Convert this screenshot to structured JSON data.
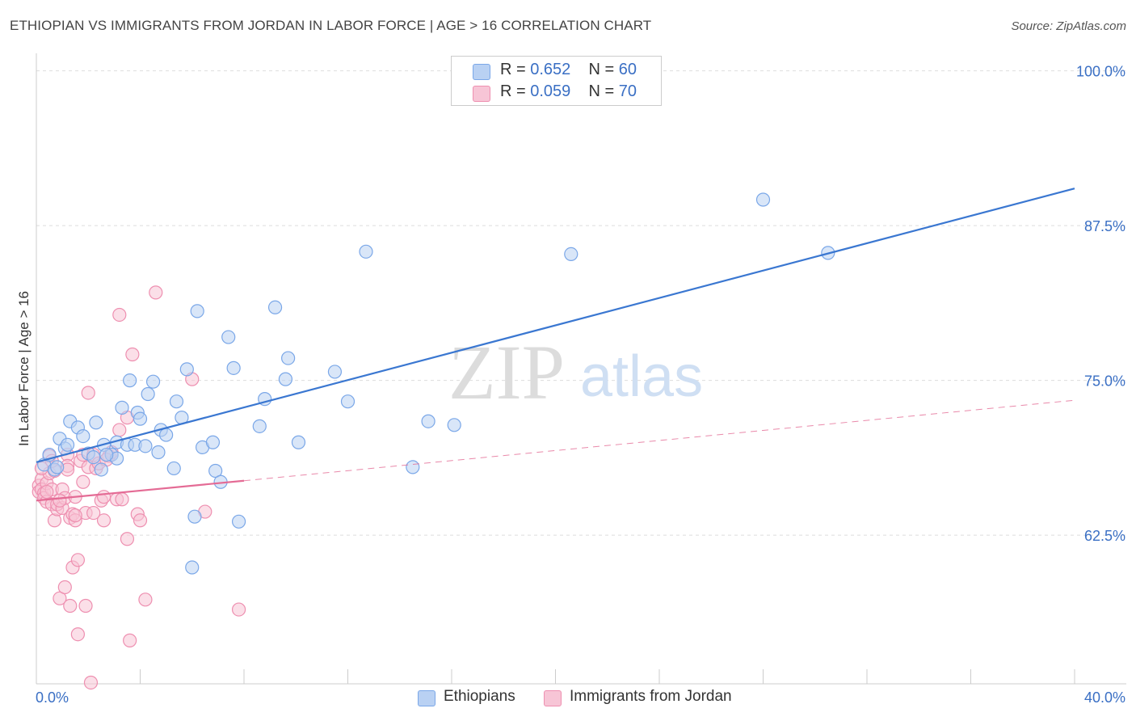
{
  "title": "ETHIOPIAN VS IMMIGRANTS FROM JORDAN IN LABOR FORCE | AGE > 16 CORRELATION CHART",
  "source": "Source: ZipAtlas.com",
  "watermark": {
    "zip": "ZIP",
    "atlas": "atlas"
  },
  "legend": {
    "rows": [
      {
        "r_label": "R = ",
        "r_value": "0.652",
        "n_label": "N = ",
        "n_value": "60"
      },
      {
        "r_label": "R = ",
        "r_value": "0.059",
        "n_label": "N = ",
        "n_value": "70"
      }
    ]
  },
  "colors": {
    "ethiopians": "#7aa7e8",
    "ethiopians_fill": "#b9d1f3",
    "ethiopians_line": "#3a77d1",
    "jordan": "#ee8fb0",
    "jordan_fill": "#f7c5d6",
    "jordan_line": "#e46b95",
    "axis_label": "#3a6fc4"
  },
  "chart_data": {
    "type": "scatter",
    "title": "ETHIOPIAN VS IMMIGRANTS FROM JORDAN IN LABOR FORCE | AGE > 16 CORRELATION CHART",
    "xlabel": "",
    "ylabel": "In Labor Force | Age > 16",
    "xlim": [
      0,
      40
    ],
    "ylim": [
      50.5,
      100.5
    ],
    "x_tick_labels": [
      "0.0%",
      "40.0%"
    ],
    "y_ticks": [
      62.5,
      75.0,
      87.5,
      100.0
    ],
    "y_tick_labels": [
      "62.5%",
      "75.0%",
      "87.5%",
      "100.0%"
    ],
    "grid": true,
    "legend_position": "top-center",
    "series": [
      {
        "name": "Ethiopians",
        "points": [
          [
            0.3,
            68.2
          ],
          [
            0.5,
            69.0
          ],
          [
            0.7,
            67.8
          ],
          [
            0.9,
            70.3
          ],
          [
            1.1,
            69.5
          ],
          [
            1.3,
            71.7
          ],
          [
            1.6,
            71.2
          ],
          [
            1.8,
            70.5
          ],
          [
            2.0,
            69.1
          ],
          [
            2.2,
            68.8
          ],
          [
            2.3,
            71.6
          ],
          [
            2.5,
            67.8
          ],
          [
            2.6,
            69.8
          ],
          [
            2.9,
            69.0
          ],
          [
            3.1,
            70.0
          ],
          [
            3.1,
            68.7
          ],
          [
            3.3,
            72.8
          ],
          [
            3.5,
            69.8
          ],
          [
            3.6,
            75.0
          ],
          [
            3.8,
            69.8
          ],
          [
            3.9,
            72.4
          ],
          [
            4.0,
            71.9
          ],
          [
            4.2,
            69.7
          ],
          [
            4.3,
            73.9
          ],
          [
            4.5,
            74.9
          ],
          [
            4.7,
            69.2
          ],
          [
            4.8,
            71.0
          ],
          [
            5.0,
            70.6
          ],
          [
            5.3,
            67.9
          ],
          [
            5.4,
            73.3
          ],
          [
            5.6,
            72.0
          ],
          [
            5.8,
            75.9
          ],
          [
            6.1,
            64.0
          ],
          [
            6.2,
            80.6
          ],
          [
            6.4,
            69.6
          ],
          [
            6.8,
            70.0
          ],
          [
            6.9,
            67.7
          ],
          [
            7.1,
            66.8
          ],
          [
            7.4,
            78.5
          ],
          [
            7.6,
            76.0
          ],
          [
            7.8,
            63.6
          ],
          [
            8.6,
            71.3
          ],
          [
            8.8,
            73.5
          ],
          [
            9.2,
            80.9
          ],
          [
            9.6,
            75.1
          ],
          [
            9.7,
            76.8
          ],
          [
            10.1,
            70.0
          ],
          [
            11.5,
            75.7
          ],
          [
            12.0,
            73.3
          ],
          [
            12.7,
            85.4
          ],
          [
            14.5,
            68.0
          ],
          [
            15.1,
            71.7
          ],
          [
            16.1,
            71.4
          ],
          [
            20.6,
            85.2
          ],
          [
            28.0,
            89.6
          ],
          [
            30.5,
            85.3
          ],
          [
            6.0,
            59.9
          ],
          [
            2.7,
            69.0
          ],
          [
            0.8,
            68.0
          ],
          [
            1.2,
            69.8
          ]
        ],
        "trend": {
          "x": [
            0,
            40
          ],
          "y": [
            68.4,
            90.5
          ],
          "style": "solid"
        }
      },
      {
        "name": "Immigrants from Jordan",
        "points": [
          [
            0.1,
            66.5
          ],
          [
            0.1,
            66.0
          ],
          [
            0.2,
            67.0
          ],
          [
            0.2,
            66.2
          ],
          [
            0.3,
            65.9
          ],
          [
            0.3,
            65.5
          ],
          [
            0.4,
            66.7
          ],
          [
            0.4,
            65.2
          ],
          [
            0.5,
            68.9
          ],
          [
            0.5,
            67.5
          ],
          [
            0.6,
            65.0
          ],
          [
            0.6,
            66.2
          ],
          [
            0.7,
            63.7
          ],
          [
            0.7,
            67.7
          ],
          [
            0.8,
            64.6
          ],
          [
            0.8,
            65.0
          ],
          [
            0.9,
            57.4
          ],
          [
            1.0,
            64.7
          ],
          [
            1.0,
            66.2
          ],
          [
            1.1,
            58.3
          ],
          [
            1.1,
            65.5
          ],
          [
            1.2,
            69.0
          ],
          [
            1.2,
            68.1
          ],
          [
            1.3,
            63.9
          ],
          [
            1.3,
            56.8
          ],
          [
            1.4,
            59.9
          ],
          [
            1.4,
            64.2
          ],
          [
            1.5,
            65.6
          ],
          [
            1.5,
            63.7
          ],
          [
            1.6,
            54.5
          ],
          [
            1.6,
            60.5
          ],
          [
            1.7,
            68.5
          ],
          [
            1.8,
            66.8
          ],
          [
            1.8,
            69.0
          ],
          [
            1.9,
            64.3
          ],
          [
            1.9,
            56.8
          ],
          [
            2.0,
            74.0
          ],
          [
            2.0,
            68.0
          ],
          [
            2.1,
            50.6
          ],
          [
            2.2,
            69.0
          ],
          [
            2.3,
            67.9
          ],
          [
            2.4,
            68.3
          ],
          [
            2.5,
            65.3
          ],
          [
            2.6,
            65.6
          ],
          [
            2.6,
            63.7
          ],
          [
            2.8,
            68.9
          ],
          [
            2.9,
            69.2
          ],
          [
            3.1,
            65.4
          ],
          [
            3.2,
            71.0
          ],
          [
            3.2,
            80.3
          ],
          [
            3.5,
            62.2
          ],
          [
            3.5,
            72.0
          ],
          [
            3.6,
            54.0
          ],
          [
            3.7,
            77.1
          ],
          [
            3.9,
            64.2
          ],
          [
            4.0,
            63.7
          ],
          [
            4.2,
            57.3
          ],
          [
            4.6,
            82.1
          ],
          [
            6.0,
            75.1
          ],
          [
            6.5,
            64.4
          ],
          [
            7.8,
            56.5
          ],
          [
            0.2,
            67.9
          ],
          [
            0.4,
            66.0
          ],
          [
            0.6,
            68.5
          ],
          [
            0.9,
            65.3
          ],
          [
            1.2,
            67.8
          ],
          [
            1.5,
            64.1
          ],
          [
            2.2,
            64.3
          ],
          [
            2.7,
            68.6
          ],
          [
            3.3,
            65.4
          ]
        ],
        "trend": {
          "x": [
            0,
            8
          ],
          "y": [
            65.3,
            66.9
          ],
          "style": "solid",
          "extended": {
            "x": [
              8,
              40
            ],
            "y": [
              66.9,
              73.4
            ],
            "style": "dashed"
          }
        }
      }
    ]
  }
}
